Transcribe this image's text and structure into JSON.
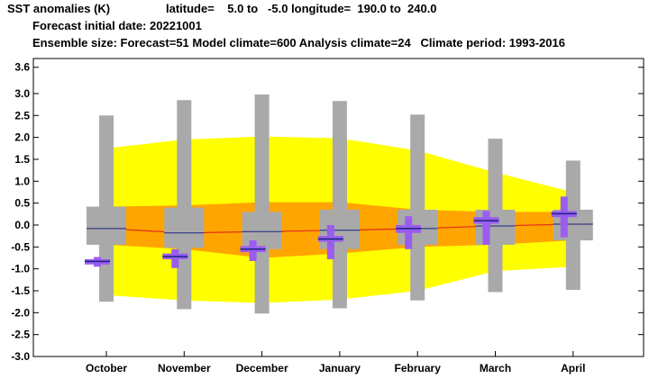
{
  "header": {
    "line1_title": "SST anomalies (K)",
    "line1_coords": "latitude=    5.0 to   -5.0 longitude=  190.0 to  240.0",
    "line2": "Forecast initial date: 20221001",
    "line3": "Ensemble size: Forecast=51 Model climate=600 Analysis climate=24   Climate period: 1993-2016"
  },
  "colors": {
    "climate_outer": "#ffff00",
    "climate_inner": "#ffa500",
    "climate_median": "#e0301e",
    "box": "#a9a9a9",
    "forecast": "#9b5cf0",
    "median_line": "#1a237e"
  },
  "chart_data": {
    "type": "box",
    "categories": [
      "October",
      "November",
      "December",
      "January",
      "February",
      "March",
      "April"
    ],
    "ylim": [
      -3.0,
      3.8
    ],
    "yticks": [
      "3.6",
      "3.0",
      "2.5",
      "2.0",
      "1.5",
      "1.0",
      "0.5",
      "0.0",
      "-0.5",
      "-1.0",
      "-1.5",
      "-2.0",
      "-2.5",
      "-3.0"
    ],
    "ytick_values": [
      3.6,
      3.0,
      2.5,
      2.0,
      1.5,
      1.0,
      0.5,
      0.0,
      -0.5,
      -1.0,
      -1.5,
      -2.0,
      -2.5,
      -3.0
    ],
    "climate_band_outer": {
      "upper": [
        1.75,
        1.95,
        2.02,
        1.98,
        1.7,
        1.2,
        0.75
      ],
      "lower": [
        -1.6,
        -1.72,
        -1.78,
        -1.7,
        -1.5,
        -1.05,
        -0.95
      ]
    },
    "climate_band_inner": {
      "upper": [
        0.42,
        0.45,
        0.52,
        0.52,
        0.35,
        0.3,
        0.3
      ],
      "lower": [
        -0.45,
        -0.55,
        -0.75,
        -0.65,
        -0.5,
        -0.45,
        -0.35
      ]
    },
    "climate_median": [
      -0.08,
      -0.18,
      -0.15,
      -0.12,
      -0.08,
      -0.02,
      0.02
    ],
    "model_climate_boxes": [
      {
        "whisker_low": -1.75,
        "q1": -0.45,
        "median": -0.08,
        "q3": 0.42,
        "whisker_high": 2.5
      },
      {
        "whisker_low": -1.92,
        "q1": -0.52,
        "median": -0.18,
        "q3": 0.4,
        "whisker_high": 2.85
      },
      {
        "whisker_low": -2.02,
        "q1": -0.55,
        "median": -0.15,
        "q3": 0.3,
        "whisker_high": 2.98
      },
      {
        "whisker_low": -1.9,
        "q1": -0.55,
        "median": -0.12,
        "q3": 0.35,
        "whisker_high": 2.83
      },
      {
        "whisker_low": -1.72,
        "q1": -0.45,
        "median": -0.08,
        "q3": 0.35,
        "whisker_high": 2.52
      },
      {
        "whisker_low": -1.53,
        "q1": -0.45,
        "median": -0.02,
        "q3": 0.35,
        "whisker_high": 1.97
      },
      {
        "whisker_low": -1.48,
        "q1": -0.35,
        "median": 0.02,
        "q3": 0.35,
        "whisker_high": 1.47
      }
    ],
    "forecast": [
      {
        "whisker_low": -0.95,
        "q1": -0.9,
        "median": -0.83,
        "q3": -0.78,
        "whisker_high": -0.73
      },
      {
        "whisker_low": -0.98,
        "q1": -0.78,
        "median": -0.72,
        "q3": -0.65,
        "whisker_high": -0.55
      },
      {
        "whisker_low": -0.82,
        "q1": -0.62,
        "median": -0.55,
        "q3": -0.48,
        "whisker_high": -0.35
      },
      {
        "whisker_low": -0.78,
        "q1": -0.38,
        "median": -0.32,
        "q3": -0.25,
        "whisker_high": 0.0
      },
      {
        "whisker_low": -0.55,
        "q1": -0.18,
        "median": -0.08,
        "q3": 0.0,
        "whisker_high": 0.2
      },
      {
        "whisker_low": -0.45,
        "q1": 0.03,
        "median": 0.1,
        "q3": 0.18,
        "whisker_high": 0.32
      },
      {
        "whisker_low": -0.28,
        "q1": 0.18,
        "median": 0.26,
        "q3": 0.32,
        "whisker_high": 0.65
      }
    ]
  }
}
